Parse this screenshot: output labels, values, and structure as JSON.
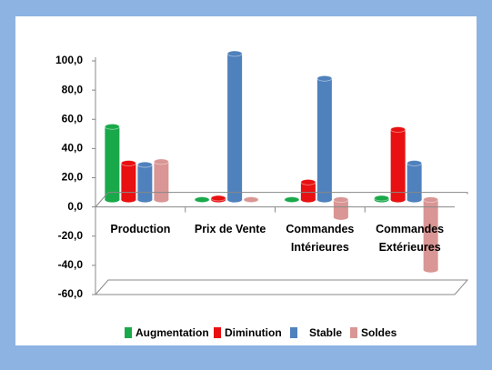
{
  "chart_data": {
    "type": "bar",
    "categories": [
      "Production",
      "Prix de Vente",
      "Commandes Intérieures",
      "Commandes Extérieures"
    ],
    "series": [
      {
        "name": "Augmentation",
        "color": "#1aa94a",
        "values": [
          50,
          0,
          0,
          1
        ]
      },
      {
        "name": "Diminution",
        "color": "#e81010",
        "values": [
          25,
          1,
          12,
          48
        ]
      },
      {
        "name": "Stable",
        "color": "#4f81bd",
        "values": [
          24,
          100,
          83,
          25
        ]
      },
      {
        "name": "Soldes",
        "color": "#d99694",
        "values": [
          26,
          0,
          -12,
          -48
        ]
      }
    ],
    "ylim": [
      -60,
      100
    ],
    "yticks": [
      {
        "value": -60,
        "label": "-60,0"
      },
      {
        "value": -40,
        "label": "-40,0"
      },
      {
        "value": -20,
        "label": "-20,0"
      },
      {
        "value": 0,
        "label": "0,0"
      },
      {
        "value": 20,
        "label": "20,0"
      },
      {
        "value": 40,
        "label": "40,0"
      },
      {
        "value": 60,
        "label": "60,0"
      },
      {
        "value": 80,
        "label": "80,0"
      },
      {
        "value": 100,
        "label": "100,0"
      }
    ],
    "legend": "bottom"
  }
}
